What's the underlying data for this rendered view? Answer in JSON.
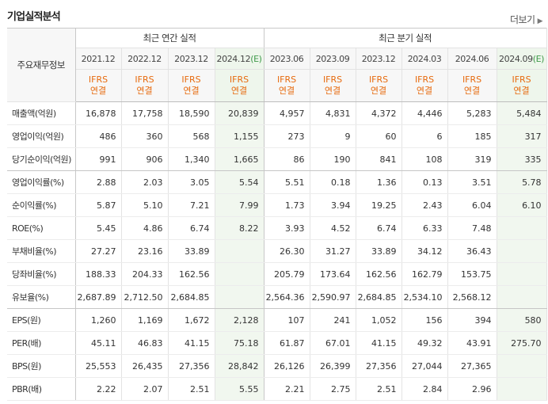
{
  "header": {
    "title": "기업실적분석",
    "more_label": "더보기",
    "more_icon": "chevron-right-icon"
  },
  "table": {
    "row_header_label": "주요재무정보",
    "groups": {
      "annual": "최근 연간 실적",
      "quarterly": "최근 분기 실적"
    },
    "periods": [
      {
        "label": "2021.12",
        "est": ""
      },
      {
        "label": "2022.12",
        "est": ""
      },
      {
        "label": "2023.12",
        "est": ""
      },
      {
        "label": "2024.12",
        "est": "(E)"
      },
      {
        "label": "2023.06",
        "est": ""
      },
      {
        "label": "2023.09",
        "est": ""
      },
      {
        "label": "2023.12",
        "est": ""
      },
      {
        "label": "2024.03",
        "est": ""
      },
      {
        "label": "2024.06",
        "est": ""
      },
      {
        "label": "2024.09",
        "est": "(E)"
      }
    ],
    "ifrs": {
      "line1": "IFRS",
      "line2": "연결"
    },
    "rows": [
      {
        "label": "매출액(억원)",
        "values": [
          "16,878",
          "17,758",
          "18,590",
          "20,839",
          "4,957",
          "4,831",
          "4,372",
          "4,446",
          "5,283",
          "5,484"
        ]
      },
      {
        "label": "영업이익(억원)",
        "values": [
          "486",
          "360",
          "568",
          "1,155",
          "273",
          "9",
          "60",
          "6",
          "185",
          "317"
        ]
      },
      {
        "label": "당기순이익(억원)",
        "values": [
          "991",
          "906",
          "1,340",
          "1,665",
          "86",
          "190",
          "841",
          "108",
          "319",
          "335"
        ]
      },
      {
        "label": "영업이익률(%)",
        "values": [
          "2.88",
          "2.03",
          "3.05",
          "5.54",
          "5.51",
          "0.18",
          "1.36",
          "0.13",
          "3.51",
          "5.78"
        ]
      },
      {
        "label": "순이익률(%)",
        "values": [
          "5.87",
          "5.10",
          "7.21",
          "7.99",
          "1.73",
          "3.94",
          "19.25",
          "2.43",
          "6.04",
          "6.10"
        ]
      },
      {
        "label": "ROE(%)",
        "values": [
          "5.45",
          "4.86",
          "6.74",
          "8.22",
          "3.93",
          "4.52",
          "6.74",
          "6.33",
          "7.48",
          ""
        ]
      },
      {
        "label": "부채비율(%)",
        "values": [
          "27.27",
          "23.16",
          "33.89",
          "",
          "26.30",
          "31.27",
          "33.89",
          "34.12",
          "36.43",
          ""
        ]
      },
      {
        "label": "당좌비율(%)",
        "values": [
          "188.33",
          "204.33",
          "162.56",
          "",
          "205.79",
          "173.64",
          "162.56",
          "162.79",
          "153.75",
          ""
        ]
      },
      {
        "label": "유보율(%)",
        "values": [
          "2,687.89",
          "2,712.50",
          "2,684.85",
          "",
          "2,564.36",
          "2,590.97",
          "2,684.85",
          "2,534.10",
          "2,568.12",
          ""
        ]
      },
      {
        "label": "EPS(원)",
        "values": [
          "1,260",
          "1,169",
          "1,672",
          "2,128",
          "107",
          "241",
          "1,052",
          "156",
          "394",
          "580"
        ]
      },
      {
        "label": "PER(배)",
        "values": [
          "45.11",
          "46.83",
          "41.15",
          "75.18",
          "61.87",
          "67.01",
          "41.15",
          "49.32",
          "43.91",
          "275.70"
        ]
      },
      {
        "label": "BPS(원)",
        "values": [
          "25,553",
          "26,435",
          "27,356",
          "28,842",
          "26,126",
          "26,399",
          "27,356",
          "27,044",
          "27,365",
          ""
        ]
      },
      {
        "label": "PBR(배)",
        "values": [
          "2.22",
          "2.07",
          "2.51",
          "5.55",
          "2.21",
          "2.75",
          "2.51",
          "2.84",
          "2.96",
          ""
        ]
      }
    ]
  }
}
